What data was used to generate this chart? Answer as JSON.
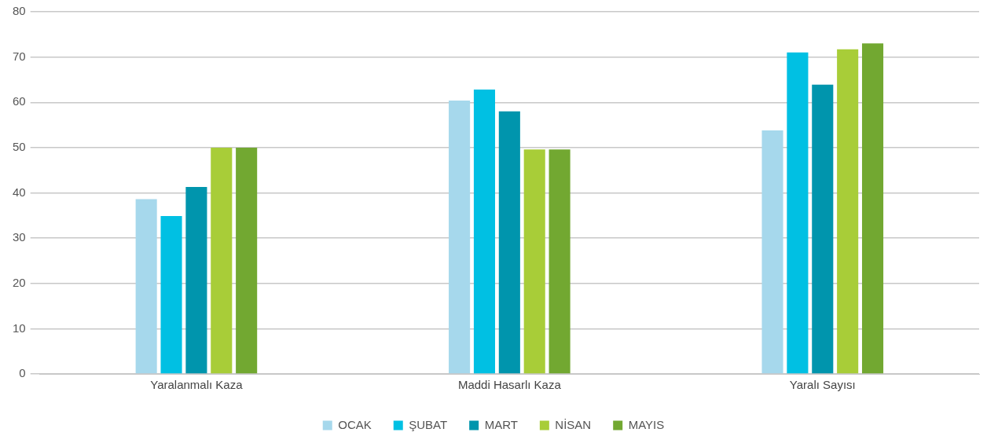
{
  "chart_data": {
    "type": "bar",
    "categories": [
      "Yaralanmalı Kaza",
      "Maddi Hasarlı Kaza",
      "Yaralı Sayısı"
    ],
    "series": [
      {
        "name": "OCAK",
        "color": "#a6d8ec",
        "values": [
          38.6,
          60.4,
          53.8
        ]
      },
      {
        "name": "ŞUBAT",
        "color": "#00c0e3",
        "values": [
          34.9,
          62.8,
          71
        ]
      },
      {
        "name": "MART",
        "color": "#0095ad",
        "values": [
          41.3,
          58,
          63.9
        ]
      },
      {
        "name": "NİSAN",
        "color": "#a8cd38",
        "values": [
          50,
          49.6,
          71.7
        ]
      },
      {
        "name": "MAYIS",
        "color": "#72a831",
        "values": [
          50,
          49.6,
          73
        ]
      }
    ],
    "ylim": [
      0,
      80
    ],
    "yticks": [
      0,
      10,
      20,
      30,
      40,
      50,
      60,
      70,
      80
    ],
    "grid": "y",
    "legend": "bottom"
  }
}
